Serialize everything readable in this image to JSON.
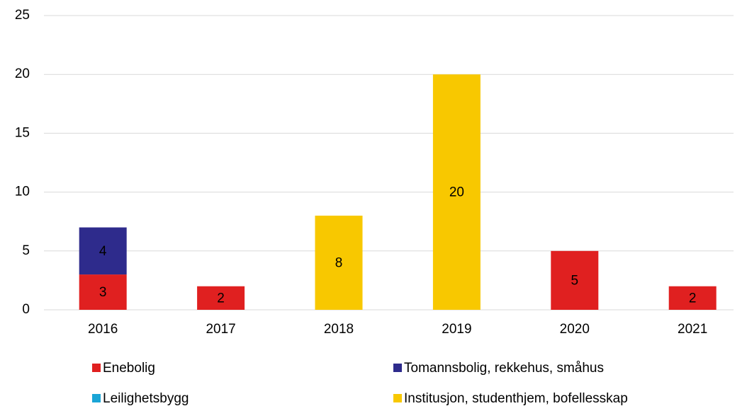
{
  "chart_data": {
    "type": "stacked_bar",
    "categories": [
      "2016",
      "2017",
      "2018",
      "2019",
      "2020",
      "2021"
    ],
    "series": [
      {
        "name": "Enebolig",
        "color": "#e02020",
        "values": [
          3,
          2,
          null,
          null,
          5,
          2
        ]
      },
      {
        "name": "Tomannsbolig, rekkehus, småhus",
        "color": "#2e2b8c",
        "values": [
          4,
          null,
          null,
          null,
          null,
          null
        ]
      },
      {
        "name": "Leilighetsbygg",
        "color": "#1aa5d6",
        "values": [
          null,
          null,
          null,
          null,
          null,
          null
        ]
      },
      {
        "name": "Institusjon, studenthjem, bofellesskap",
        "color": "#f8c800",
        "values": [
          null,
          null,
          8,
          20,
          null,
          null
        ]
      }
    ],
    "ylim": [
      0,
      25
    ],
    "yticks": [
      0,
      5,
      10,
      15,
      20,
      25
    ],
    "grid": true,
    "legend": "bottom"
  }
}
